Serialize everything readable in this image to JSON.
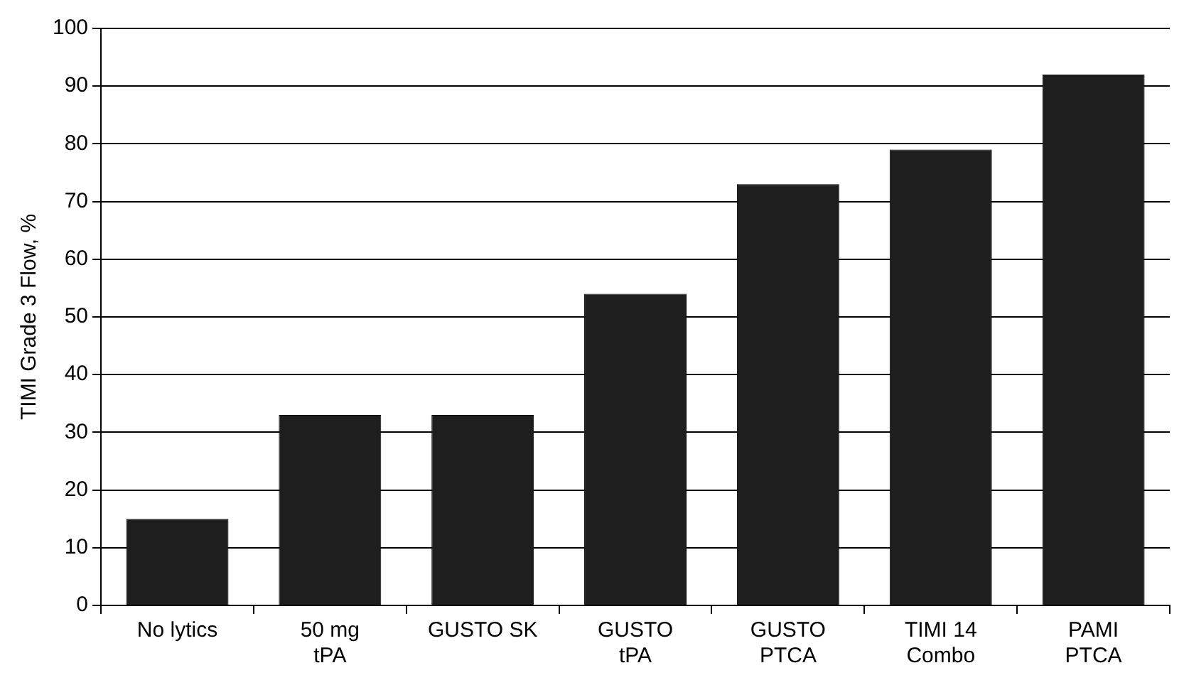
{
  "chart_data": {
    "type": "bar",
    "ylabel": "TIMI Grade 3 Flow, %",
    "categories": [
      "No lytics",
      "50 mg\ntPA",
      "GUSTO SK",
      "GUSTO\ntPA",
      "GUSTO\nPTCA",
      "TIMI 14\nCombo",
      "PAMI\nPTCA"
    ],
    "values": [
      15,
      33,
      33,
      54,
      73,
      79,
      92
    ],
    "color": "#1e1e1e",
    "ylim": [
      0,
      100
    ],
    "yticks": [
      0,
      10,
      20,
      30,
      40,
      50,
      60,
      70,
      80,
      90,
      100
    ],
    "grid": "y",
    "legend": false
  }
}
